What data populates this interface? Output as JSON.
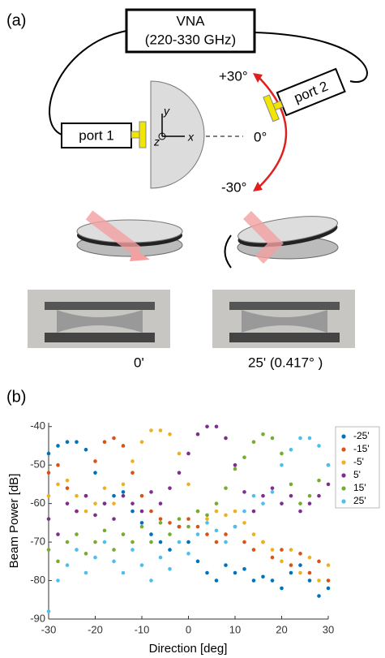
{
  "figure": {
    "panel_a": "(a)",
    "vna": "VNA",
    "vna_range": "(220-330 GHz)",
    "port1": "port 1",
    "port2": "port 2",
    "angle_plus": "+30°",
    "angle_zero": "0°",
    "angle_minus": "-30°",
    "axis_y": "y",
    "axis_x": "x",
    "axis_z": "z",
    "photo_left": "0'",
    "photo_right": "25' (0.417°  )",
    "panel_b": "(b)"
  },
  "chart_data": {
    "type": "scatter",
    "x_label": "Direction [deg]",
    "y_label": "Beam Power [dB]",
    "xlim": [
      -30,
      30
    ],
    "xticks": [
      -30,
      -20,
      -10,
      0,
      10,
      20,
      30
    ],
    "ylim": [
      -90,
      -39
    ],
    "yticks": [
      -90,
      -80,
      -70,
      -60,
      -50,
      -40
    ],
    "legend": "outside-right",
    "x": [
      -30,
      -28,
      -26,
      -24,
      -22,
      -20,
      -18,
      -16,
      -14,
      -12,
      -10,
      -8,
      -6,
      -4,
      -2,
      0,
      2,
      4,
      6,
      8,
      10,
      12,
      14,
      16,
      18,
      20,
      22,
      24,
      26,
      28,
      30
    ],
    "series": [
      {
        "name": "-25'",
        "color": "#0072BD",
        "values": [
          -47,
          -45,
          -44,
          -44,
          -46,
          -52,
          -60,
          -58,
          -57,
          -62,
          -65,
          -68,
          -70,
          -72,
          -66,
          -70,
          -75,
          -78,
          -80,
          -76,
          -78,
          -77,
          -80,
          -79,
          -80,
          -82,
          -78,
          -76,
          -80,
          -84,
          -82
        ]
      },
      {
        "name": "-15'",
        "color": "#D95319",
        "values": [
          -52,
          -50,
          -56,
          -62,
          -58,
          -49,
          -44,
          -43,
          -45,
          -52,
          -58,
          -62,
          -64,
          -65,
          -66,
          -64,
          -66,
          -68,
          -70,
          -68,
          -66,
          -70,
          -72,
          -70,
          -74,
          -72,
          -76,
          -73,
          -78,
          -75,
          -80
        ]
      },
      {
        "name": "-5'",
        "color": "#EDB120",
        "values": [
          -58,
          -55,
          -54,
          -58,
          -62,
          -60,
          -56,
          -60,
          -55,
          -49,
          -44,
          -41,
          -41,
          -42,
          -47,
          -55,
          -62,
          -64,
          -62,
          -63,
          -62,
          -65,
          -68,
          -70,
          -72,
          -75,
          -72,
          -78,
          -74,
          -80,
          -76
        ]
      },
      {
        "name": "5'",
        "color": "#7E2F8E",
        "values": [
          -64,
          -68,
          -60,
          -62,
          -58,
          -63,
          -60,
          -64,
          -58,
          -60,
          -62,
          -57,
          -60,
          -56,
          -52,
          -47,
          -42,
          -40,
          -40,
          -43,
          -50,
          -57,
          -62,
          -58,
          -56,
          -60,
          -58,
          -62,
          -60,
          -58,
          -55
        ]
      },
      {
        "name": "15'",
        "color": "#77AC30",
        "values": [
          -72,
          -75,
          -70,
          -68,
          -73,
          -70,
          -67,
          -72,
          -68,
          -70,
          -66,
          -70,
          -65,
          -68,
          -64,
          -66,
          -62,
          -63,
          -60,
          -56,
          -51,
          -48,
          -44,
          -42,
          -43,
          -47,
          -55,
          -60,
          -58,
          -54,
          -50
        ]
      },
      {
        "name": "25'",
        "color": "#4DBEEE",
        "values": [
          -88,
          -80,
          -76,
          -72,
          -78,
          -74,
          -70,
          -75,
          -78,
          -72,
          -76,
          -80,
          -74,
          -77,
          -70,
          -73,
          -68,
          -65,
          -67,
          -70,
          -66,
          -62,
          -58,
          -60,
          -57,
          -50,
          -46,
          -43,
          -43,
          -45,
          -50
        ]
      }
    ]
  }
}
